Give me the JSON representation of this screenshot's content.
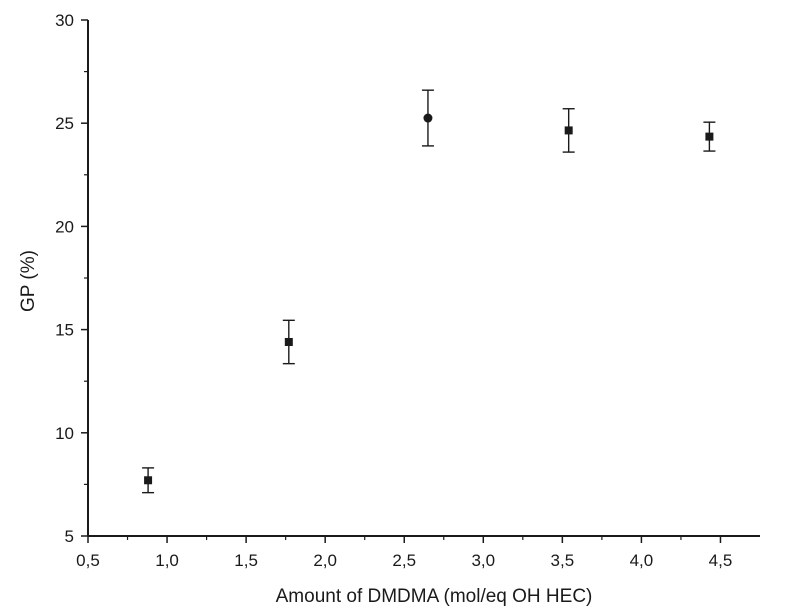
{
  "chart_data": {
    "type": "scatter",
    "title": "",
    "xlabel": "Amount of DMDMA (mol/eq OH HEC)",
    "ylabel": "GP (%)",
    "xlim": [
      0.5,
      4.75
    ],
    "ylim": [
      5,
      30
    ],
    "xticks": [
      0.5,
      1.0,
      1.5,
      2.0,
      2.5,
      3.0,
      3.5,
      4.0,
      4.5
    ],
    "xtick_labels": [
      "0,5",
      "1,0",
      "1,5",
      "2,0",
      "2,5",
      "3,0",
      "3,5",
      "4,0",
      "4,5"
    ],
    "yticks": [
      5,
      10,
      15,
      20,
      25,
      30
    ],
    "ytick_labels": [
      "5",
      "10",
      "15",
      "20",
      "25",
      "30"
    ],
    "grid": false,
    "legend": "none",
    "marker_color": "#1a1a1a",
    "points": [
      {
        "x": 0.88,
        "y": 7.7,
        "err": 0.6,
        "marker": "square"
      },
      {
        "x": 1.77,
        "y": 14.4,
        "err": 1.05,
        "marker": "square"
      },
      {
        "x": 2.65,
        "y": 25.25,
        "err": 1.35,
        "marker": "circle"
      },
      {
        "x": 3.54,
        "y": 24.65,
        "err": 1.05,
        "marker": "square"
      },
      {
        "x": 4.43,
        "y": 24.35,
        "err": 0.7,
        "marker": "square"
      }
    ]
  }
}
